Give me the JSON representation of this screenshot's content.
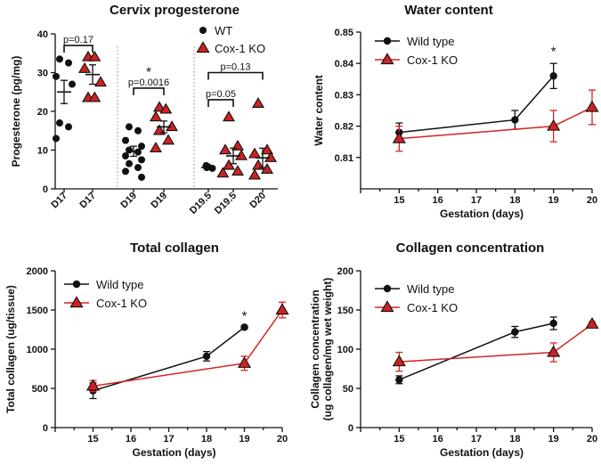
{
  "colors": {
    "wt": "#111111",
    "ko": "#d42424",
    "ko_fill": "#cc2222"
  },
  "chart_data": [
    {
      "id": "cervix",
      "type": "scatter",
      "title": "Cervix progesterone",
      "xlabel": "",
      "ylabel": "Progesterone (pg/mg)",
      "ylim": [
        0,
        40
      ],
      "yticks": [
        0,
        10,
        20,
        30,
        40
      ],
      "legend": [
        {
          "name": "WT",
          "marker": "circle"
        },
        {
          "name": "Cox-1 KO",
          "marker": "triangle"
        }
      ],
      "groups": [
        {
          "label": "D17",
          "series": "WT",
          "values": [
            33.5,
            32.5,
            29,
            27,
            17,
            16,
            13
          ],
          "mean": 25,
          "err": 3
        },
        {
          "label": "D17",
          "series": "Cox-1 KO",
          "values": [
            34,
            34,
            31,
            27.5,
            23.5,
            23.5
          ],
          "mean": 29.5,
          "err": 2.5
        },
        {
          "label": "D19",
          "series": "WT",
          "values": [
            16,
            15,
            12.5,
            11,
            10,
            9.5,
            8.5,
            7.5,
            6.5,
            5.5,
            4.5,
            3
          ],
          "mean": 9.7,
          "err": 1.3
        },
        {
          "label": "D19",
          "series": "Cox-1 KO",
          "values": [
            21,
            20.5,
            18.5,
            16,
            15,
            12.5,
            10.5
          ],
          "mean": 16,
          "err": 1.5
        },
        {
          "label": "D19.5",
          "series": "WT",
          "values": [
            6,
            5.7,
            5.5,
            5.3
          ],
          "mean": 5.5,
          "err": 0.3
        },
        {
          "label": "D19.5",
          "series": "Cox-1 KO",
          "values": [
            18.5,
            11,
            10,
            8.5,
            6,
            4.5,
            4
          ],
          "mean": 8.5,
          "err": 2
        },
        {
          "label": "D20",
          "series": "Cox-1 KO",
          "values": [
            22,
            10,
            9,
            8,
            6,
            5,
            3.5
          ],
          "mean": 8,
          "err": 2.5
        }
      ],
      "annotations": [
        {
          "text": "p=0.17",
          "between": [
            0,
            1
          ],
          "y": 37
        },
        {
          "text": "*",
          "between": [
            2,
            3
          ],
          "y": 30
        },
        {
          "text": "p=0.0016",
          "between": [
            2,
            3
          ],
          "y": 26
        },
        {
          "text": "p=0.13",
          "between": [
            4,
            6
          ],
          "y": 30
        },
        {
          "text": "p=0.05",
          "between": [
            4,
            5
          ],
          "y": 23
        }
      ]
    },
    {
      "id": "water",
      "type": "line",
      "title": "Water content",
      "xlabel": "Gestation (days)",
      "ylabel": "Water content",
      "xlim": [
        14,
        20
      ],
      "ylim": [
        0.8,
        0.85
      ],
      "xticks": [
        15,
        16,
        17,
        18,
        19,
        20
      ],
      "yticks": [
        0.81,
        0.82,
        0.83,
        0.84,
        0.85
      ],
      "series": [
        {
          "name": "Wild type",
          "marker": "circle",
          "x": [
            15,
            18,
            19
          ],
          "y": [
            0.818,
            0.822,
            0.836
          ],
          "err": [
            0.003,
            0.003,
            0.004
          ]
        },
        {
          "name": "Cox-1 KO",
          "marker": "triangle",
          "x": [
            15,
            19,
            20
          ],
          "y": [
            0.816,
            0.82,
            0.826
          ],
          "err": [
            0.004,
            0.005,
            0.0055
          ]
        }
      ],
      "annotations": [
        {
          "text": "*",
          "x": 19,
          "y": 0.8425
        }
      ]
    },
    {
      "id": "collagen",
      "type": "line",
      "title": "Total collagen",
      "xlabel": "Gestation (days)",
      "ylabel": "Total collagen (ug/tissue)",
      "xlim": [
        14,
        20
      ],
      "ylim": [
        0,
        2000
      ],
      "xticks": [
        15,
        16,
        17,
        18,
        19,
        20
      ],
      "yticks": [
        0,
        500,
        1000,
        1500,
        2000
      ],
      "series": [
        {
          "name": "Wild type",
          "marker": "circle",
          "x": [
            15,
            18,
            19
          ],
          "y": [
            470,
            910,
            1280
          ],
          "err": [
            100,
            60,
            20
          ]
        },
        {
          "name": "Cox-1 KO",
          "marker": "triangle",
          "x": [
            15,
            19,
            20
          ],
          "y": [
            530,
            820,
            1500
          ],
          "err": [
            70,
            90,
            100
          ]
        }
      ],
      "annotations": [
        {
          "text": "*",
          "x": 19,
          "y": 1370
        }
      ]
    },
    {
      "id": "concentration",
      "type": "line",
      "title": "Collagen concentration",
      "xlabel": "Gestation (days)",
      "ylabel": "Collagen concentration (ug collagen/mg wet weight)",
      "ylabel_lines": [
        "Collagen concentration",
        "(ug collagen/mg wet weight)"
      ],
      "xlim": [
        14,
        20
      ],
      "ylim": [
        0,
        200
      ],
      "xticks": [
        15,
        16,
        17,
        18,
        19,
        20
      ],
      "yticks": [
        0,
        50,
        100,
        150,
        200
      ],
      "series": [
        {
          "name": "Wild type",
          "marker": "circle",
          "x": [
            15,
            18,
            19
          ],
          "y": [
            61,
            122,
            133
          ],
          "err": [
            5,
            7,
            8
          ]
        },
        {
          "name": "Cox-1 KO",
          "marker": "triangle",
          "x": [
            15,
            19,
            20
          ],
          "y": [
            84,
            96,
            132
          ],
          "err": [
            12,
            12,
            3
          ]
        }
      ],
      "annotations": []
    }
  ]
}
